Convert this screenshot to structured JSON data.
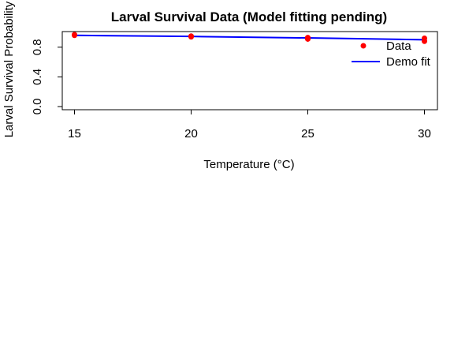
{
  "chart_data": {
    "type": "scatter",
    "title": "Larval Survival Data (Model fitting pending)",
    "xlabel": "Temperature (°C)",
    "ylabel": "Larval Survival Probability",
    "xlim": [
      15,
      30
    ],
    "ylim": [
      0,
      1
    ],
    "x_ticks": [
      15,
      20,
      25,
      30
    ],
    "y_ticks": [
      0.0,
      0.4,
      0.8
    ],
    "x_tick_labels": [
      "15",
      "20",
      "25",
      "30"
    ],
    "y_tick_labels": [
      "0.0",
      "0.4",
      "0.8"
    ],
    "grid": false,
    "legend_position": "top-right",
    "series": [
      {
        "name": "Data",
        "kind": "points",
        "color": "#ff0000",
        "x": [
          15,
          15,
          20,
          20,
          25,
          25,
          30,
          30
        ],
        "y": [
          0.97,
          0.96,
          0.95,
          0.94,
          0.93,
          0.91,
          0.92,
          0.88
        ]
      },
      {
        "name": "Demo fit",
        "kind": "line",
        "color": "#0000ff",
        "x": [
          15,
          20,
          25,
          30
        ],
        "y": [
          0.96,
          0.945,
          0.925,
          0.9
        ]
      }
    ]
  }
}
